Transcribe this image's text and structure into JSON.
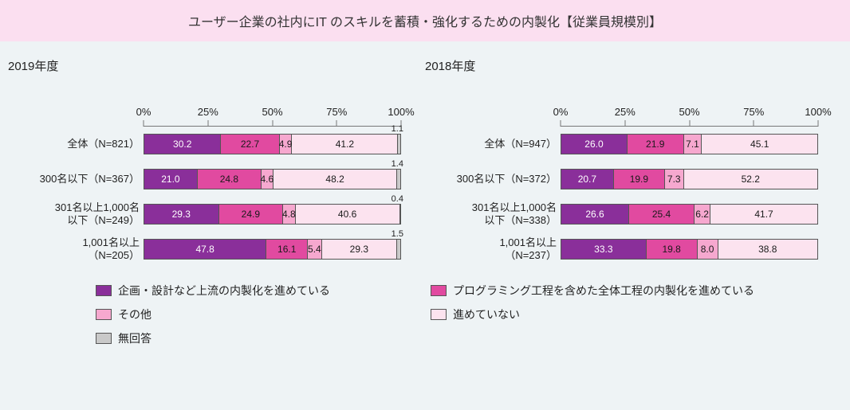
{
  "title": "ユーザー企業の社内にIT のスキルを蓄積・強化するための内製化【従業員規模別】",
  "axis": {
    "ticks": [
      0,
      25,
      50,
      75,
      100
    ],
    "tick_labels": [
      "0%",
      "25%",
      "50%",
      "75%",
      "100%"
    ]
  },
  "colors": {
    "s1": "#8a2f9a",
    "s2": "#e14aa0",
    "s3": "#f6a8cf",
    "s4": "#fce3ef",
    "s5": "#c9c9c9",
    "s1_text": "#ffffff",
    "s2_text": "#1a1a1a",
    "s3_text": "#1a1a1a",
    "s4_text": "#1a1a1a",
    "s5_text": "#1a1a1a"
  },
  "panels": [
    {
      "title": "2019年度",
      "rows": [
        {
          "label": "全体（N=821）",
          "values": [
            30.2,
            22.7,
            4.9,
            41.2,
            1.1
          ],
          "out_idx": 4
        },
        {
          "label": "300名以下（N=367）",
          "values": [
            21.0,
            24.8,
            4.6,
            48.2,
            1.4
          ],
          "out_idx": 4
        },
        {
          "label": "301名以上1,000名\n以下（N=249）",
          "values": [
            29.3,
            24.9,
            4.8,
            40.6,
            0.4
          ],
          "out_idx": 4
        },
        {
          "label": "1,001名以上\n（N=205）",
          "values": [
            47.8,
            16.1,
            5.4,
            29.3,
            1.5
          ],
          "out_idx": 4
        }
      ]
    },
    {
      "title": "2018年度",
      "rows": [
        {
          "label": "全体（N=947）",
          "values": [
            26.0,
            21.9,
            7.1,
            45.1,
            0
          ],
          "out_idx": -1
        },
        {
          "label": "300名以下（N=372）",
          "values": [
            20.7,
            19.9,
            7.3,
            52.2,
            0
          ],
          "out_idx": -1
        },
        {
          "label": "301名以上1,000名\n以下（N=338）",
          "values": [
            26.6,
            25.4,
            6.2,
            41.7,
            0
          ],
          "out_idx": -1
        },
        {
          "label": "1,001名以上\n（N=237）",
          "values": [
            33.3,
            19.8,
            8.0,
            38.8,
            0
          ],
          "out_idx": -1
        }
      ]
    }
  ],
  "legend": [
    [
      {
        "color": "s1",
        "label": "企画・設計など上流の内製化を進めている"
      },
      {
        "color": "s2",
        "label": "プログラミング工程を含めた全体工程の内製化を進めている"
      }
    ],
    [
      {
        "color": "s3",
        "label": "その他"
      },
      {
        "color": "s4",
        "label": "進めていない"
      }
    ],
    [
      {
        "color": "s5",
        "label": "無回答"
      }
    ]
  ]
}
